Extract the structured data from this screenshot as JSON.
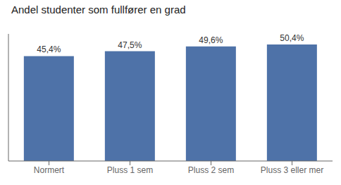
{
  "chart_data": {
    "type": "bar",
    "title": "Andel studenter som fullfører en grad",
    "categories": [
      "Normert",
      "Pluss 1 sem",
      "Pluss 2 sem",
      "Pluss 3 eller mer"
    ],
    "values": [
      45.4,
      47.5,
      49.6,
      50.4
    ],
    "value_labels": [
      "45,4%",
      "47,5%",
      "49,6%",
      "50,4%"
    ],
    "data_labels": true,
    "color": "#4e72a8",
    "ylim": [
      0,
      55
    ],
    "grid": false,
    "tick_labels": "x"
  }
}
